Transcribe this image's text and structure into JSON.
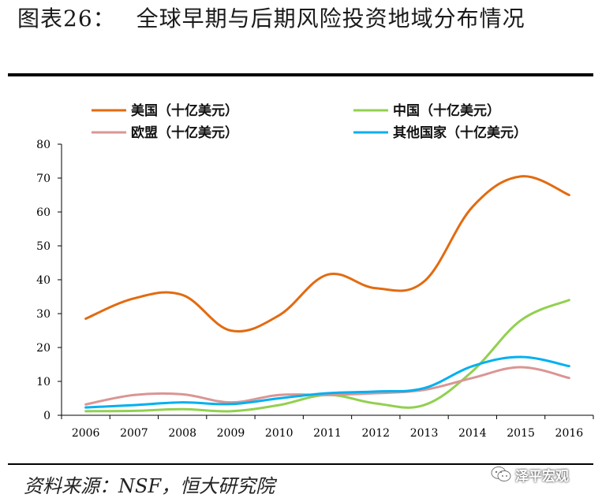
{
  "title": {
    "number": "图表26：",
    "text": "全球早期与后期风险投资地域分布情况"
  },
  "source": "资料来源：NSF，恒大研究院",
  "watermark": "泽平宏观",
  "chart_data": {
    "type": "line",
    "title": "全球早期与后期风险投资地域分布情况",
    "x": [
      "2006",
      "2007",
      "2008",
      "2009",
      "2010",
      "2011",
      "2012",
      "2013",
      "2014",
      "2015",
      "2016"
    ],
    "ylim": [
      0,
      80
    ],
    "yticks": [
      0,
      10,
      20,
      30,
      40,
      50,
      60,
      70,
      80
    ],
    "legend_position": "top",
    "series": [
      {
        "name": "美国（十亿美元）",
        "color": "#E26B10",
        "values": [
          28.5,
          34.5,
          35.5,
          25,
          29.5,
          41.5,
          37.5,
          39.5,
          61.5,
          70.5,
          65
        ]
      },
      {
        "name": "中国（十亿美元）",
        "color": "#92D050",
        "values": [
          1.2,
          1.3,
          1.8,
          1.2,
          3,
          6,
          3.5,
          3,
          13,
          28,
          34
        ]
      },
      {
        "name": "欧盟（十亿美元）",
        "color": "#D99694",
        "values": [
          3.2,
          6,
          6.2,
          3.8,
          6,
          6,
          6.5,
          7.5,
          11,
          14.2,
          11
        ]
      },
      {
        "name": "其他国家（十亿美元）",
        "color": "#00B0F0",
        "values": [
          2.3,
          3,
          3.8,
          3.3,
          5,
          6.5,
          7,
          8,
          14.5,
          17.2,
          14.5
        ]
      }
    ]
  }
}
